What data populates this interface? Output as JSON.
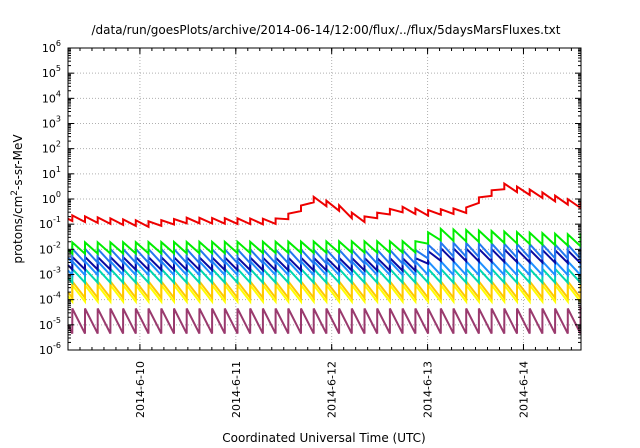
{
  "chart_data": {
    "type": "line",
    "title": "/data/run/goesPlots/archive/2014-06-14/12:00/flux/../flux/5daysMarsFluxes.txt",
    "xlabel": "Coordinated Universal Time (UTC)",
    "ylabel": {
      "base": "protons/cm",
      "sup": "2",
      "rest": "-s-sr-MeV"
    },
    "y_scale": "log",
    "y_range_exponent": [
      -6,
      6
    ],
    "y_tick_exponents": [
      -6,
      -5,
      -4,
      -3,
      -2,
      -1,
      0,
      1,
      2,
      3,
      4,
      5,
      6
    ],
    "x_range_days": [
      9.25,
      14.6
    ],
    "x_ticks": [
      {
        "day": 10,
        "label": "2014-6-10"
      },
      {
        "day": 11,
        "label": "2014-6-11"
      },
      {
        "day": 12,
        "label": "2014-6-12"
      },
      {
        "day": 13,
        "label": "2014-6-13"
      },
      {
        "day": 14,
        "label": "2014-6-14"
      }
    ],
    "grid": true,
    "sawtooth_period_days": 0.1325,
    "series": [
      {
        "color": "#9a3a6e",
        "trend": [
          [
            9.25,
            -4.85
          ],
          [
            14.6,
            -4.85
          ]
        ],
        "amp": 1.0
      },
      {
        "color": "#ffff00",
        "trend": [
          [
            9.25,
            -3.75
          ],
          [
            14.6,
            -3.75
          ]
        ],
        "amp": 0.65
      },
      {
        "color": "#ffc800",
        "trend": [
          [
            9.25,
            -3.6
          ],
          [
            14.6,
            -3.6
          ]
        ],
        "amp": 0.65
      },
      {
        "color": "#00d8b0",
        "trend": [
          [
            9.25,
            -3.05
          ],
          [
            14.6,
            -3.05
          ]
        ],
        "amp": 0.55
      },
      {
        "color": "#1e90ff",
        "trend": [
          [
            9.25,
            -2.75
          ],
          [
            14.6,
            -2.75
          ]
        ],
        "amp": 0.55
      },
      {
        "color": "#0a0aa0",
        "trend": [
          [
            9.25,
            -2.55
          ],
          [
            12.9,
            -2.6
          ],
          [
            13.05,
            -2.2
          ],
          [
            14.6,
            -2.3
          ]
        ],
        "amp": 0.5
      },
      {
        "color": "#2478f0",
        "trend": [
          [
            9.25,
            -2.25
          ],
          [
            12.9,
            -2.3
          ],
          [
            13.05,
            -2.0
          ],
          [
            14.6,
            -2.1
          ]
        ],
        "amp": 0.55
      },
      {
        "color": "#00ee00",
        "trend": [
          [
            9.25,
            -1.95
          ],
          [
            12.9,
            -1.9
          ],
          [
            13.05,
            -1.4
          ],
          [
            14.6,
            -1.65
          ]
        ],
        "amp": 0.45
      },
      {
        "color": "#ee0000",
        "trend": [
          [
            9.25,
            -0.75
          ],
          [
            10.1,
            -1.0
          ],
          [
            10.5,
            -0.85
          ],
          [
            11.4,
            -0.9
          ],
          [
            11.65,
            -0.55
          ],
          [
            11.75,
            0.05
          ],
          [
            12.05,
            -0.3
          ],
          [
            12.3,
            -0.85
          ],
          [
            12.7,
            -0.4
          ],
          [
            13.0,
            -0.55
          ],
          [
            13.4,
            -0.45
          ],
          [
            13.55,
            0.0
          ],
          [
            13.8,
            0.5
          ],
          [
            14.2,
            0.15
          ],
          [
            14.6,
            -0.25
          ]
        ],
        "amp": 0.22
      }
    ]
  }
}
